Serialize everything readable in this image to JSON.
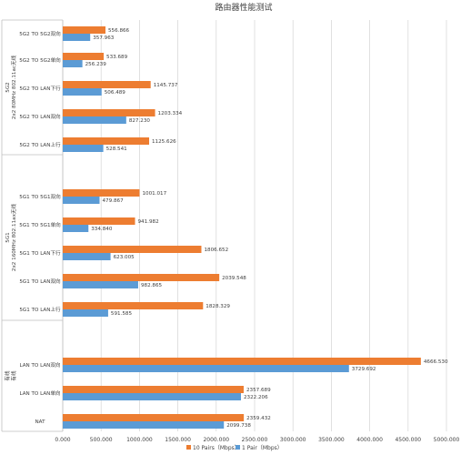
{
  "chart_data": {
    "type": "bar",
    "orientation": "horizontal",
    "title": "路由器性能测试",
    "xlim": [
      0,
      5000
    ],
    "xticks": [
      "0.000",
      "500.000",
      "1000.000",
      "1500.000",
      "2000.000",
      "2500.000",
      "3000.000",
      "3500.000",
      "4000.000",
      "4500.000",
      "5000.000"
    ],
    "grid": true,
    "legend_position": "bottom",
    "colors": {
      "pairs10": "#ED7D31",
      "pair1": "#5B9BD5"
    },
    "series": [
      {
        "name": "10 Pairs（Mbps）",
        "color": "#ED7D31"
      },
      {
        "name": "1 Pair（Mbps）",
        "color": "#5B9BD5"
      }
    ],
    "groups": [
      {
        "label_line1": "5G2",
        "label_line2": "2x2 80MHz 802.11ac无线",
        "categories": [
          {
            "name": "5G2 TO 5G2双向",
            "pairs10": 556.866,
            "pairs10_label": "556.866",
            "pair1": 357.963,
            "pair1_label": "357.963"
          },
          {
            "name": "5G2 TO 5G2单向",
            "pairs10": 533.689,
            "pairs10_label": "533.689",
            "pair1": 256.239,
            "pair1_label": "256.239"
          },
          {
            "name": "5G2 TO LAN下行",
            "pairs10": 1145.737,
            "pairs10_label": "1145.737",
            "pair1": 506.489,
            "pair1_label": "506.489"
          },
          {
            "name": "5G2 TO LAN双向",
            "pairs10": 1203.334,
            "pairs10_label": "1203.334",
            "pair1": 827.23,
            "pair1_label": "827.230"
          },
          {
            "name": "5G2 TO LAN上行",
            "pairs10": 1125.626,
            "pairs10_label": "1125.626",
            "pair1": 528.541,
            "pair1_label": "528.541"
          }
        ]
      },
      {
        "label_line1": "5G1",
        "label_line2": "2x2 160MHz 802.11ax无线",
        "categories": [
          {
            "name": "5G1 TO 5G1双向",
            "pairs10": 1001.017,
            "pairs10_label": "1001.017",
            "pair1": 479.867,
            "pair1_label": "479.867"
          },
          {
            "name": "5G1 TO 5G1单向",
            "pairs10": 941.982,
            "pairs10_label": "941.982",
            "pair1": 334.84,
            "pair1_label": "334.840"
          },
          {
            "name": "5G1 TO LAN下行",
            "pairs10": 1806.652,
            "pairs10_label": "1806.652",
            "pair1": 623.005,
            "pair1_label": "623.005"
          },
          {
            "name": "5G1 TO LAN双向",
            "pairs10": 2039.548,
            "pairs10_label": "2039.548",
            "pair1": 982.865,
            "pair1_label": "982.865"
          },
          {
            "name": "5G1 TO LAN上行",
            "pairs10": 1828.329,
            "pairs10_label": "1828.329",
            "pair1": 591.585,
            "pair1_label": "591.585"
          }
        ]
      },
      {
        "label_line1": "有线",
        "label_line2": "有线",
        "categories": [
          {
            "name": "LAN TO LAN双向",
            "pairs10": 4666.53,
            "pairs10_label": "4666.530",
            "pair1": 3729.692,
            "pair1_label": "3729.692"
          },
          {
            "name": "LAN TO LAN单向",
            "pairs10": 2357.689,
            "pairs10_label": "2357.689",
            "pair1": 2322.206,
            "pair1_label": "2322.206"
          },
          {
            "name": "NAT",
            "pairs10": 2359.432,
            "pairs10_label": "2359.432",
            "pair1": 2099.738,
            "pair1_label": "2099.738"
          }
        ]
      }
    ]
  }
}
